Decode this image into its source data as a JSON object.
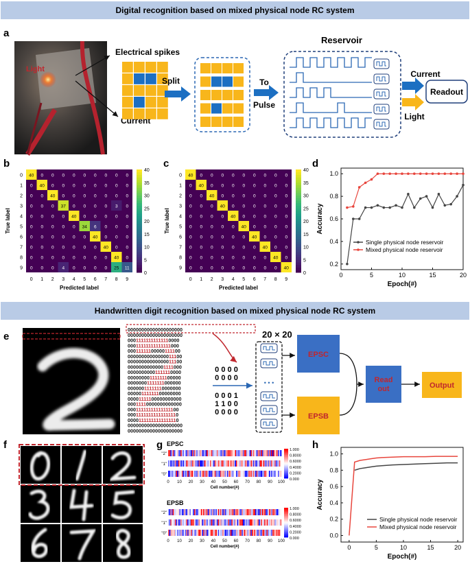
{
  "banners": {
    "top": "Digital recognition based on mixed physical node RC system",
    "middle": "Handwritten digit recognition based on mixed physical node RC system"
  },
  "panel_labels": {
    "a": "a",
    "b": "b",
    "c": "c",
    "d": "d",
    "e": "e",
    "f": "f",
    "g": "g",
    "h": "h"
  },
  "panel_a": {
    "photo_label": "Light",
    "electrical_spikes": "Electrical spikes",
    "current_label": "Current",
    "split": "Split",
    "to_pulse": "To\nPulse",
    "reservoir": "Reservoir",
    "out_current": "Current",
    "out_light": "Light",
    "readout": "Readout",
    "grid_pattern": [
      [
        0,
        0,
        0,
        0
      ],
      [
        0,
        1,
        1,
        0
      ],
      [
        0,
        0,
        0,
        0
      ],
      [
        0,
        1,
        0,
        0
      ],
      [
        0,
        0,
        0,
        0
      ]
    ],
    "colors": {
      "yellow": "#f8b61b",
      "blue": "#1c6fc2",
      "navy": "#1f3e7a",
      "dash": "#2a67b3"
    }
  },
  "confusion_axes": {
    "xlabel": "Predicted label",
    "ylabel": "True label",
    "ticks": [
      "0",
      "1",
      "2",
      "3",
      "4",
      "5",
      "6",
      "7",
      "8",
      "9"
    ],
    "colorbar_ticks": [
      0,
      5,
      10,
      15,
      20,
      25,
      30,
      35,
      40
    ]
  },
  "chart_data": [
    {
      "id": "b",
      "type": "heatmap",
      "xlabel": "Predicted label",
      "ylabel": "True label",
      "categories": [
        "0",
        "1",
        "2",
        "3",
        "4",
        "5",
        "6",
        "7",
        "8",
        "9"
      ],
      "matrix": [
        [
          40,
          0,
          0,
          0,
          0,
          0,
          0,
          0,
          0,
          0
        ],
        [
          0,
          40,
          0,
          0,
          0,
          0,
          0,
          0,
          0,
          0
        ],
        [
          0,
          0,
          40,
          0,
          0,
          0,
          0,
          0,
          0,
          0
        ],
        [
          0,
          0,
          0,
          37,
          0,
          0,
          0,
          0,
          3,
          0
        ],
        [
          0,
          0,
          0,
          0,
          40,
          0,
          0,
          0,
          0,
          0
        ],
        [
          0,
          0,
          0,
          0,
          0,
          34,
          6,
          0,
          0,
          0
        ],
        [
          0,
          0,
          0,
          0,
          0,
          0,
          40,
          0,
          0,
          0
        ],
        [
          0,
          0,
          0,
          0,
          0,
          0,
          0,
          40,
          0,
          0
        ],
        [
          0,
          0,
          0,
          0,
          0,
          0,
          0,
          0,
          40,
          0
        ],
        [
          0,
          0,
          0,
          4,
          0,
          0,
          0,
          0,
          25,
          11
        ]
      ],
      "zlim": [
        0,
        40
      ]
    },
    {
      "id": "c",
      "type": "heatmap",
      "xlabel": "Predicted label",
      "ylabel": "True label",
      "categories": [
        "0",
        "1",
        "2",
        "3",
        "4",
        "5",
        "6",
        "7",
        "8",
        "9"
      ],
      "matrix": [
        [
          40,
          0,
          0,
          0,
          0,
          0,
          0,
          0,
          0,
          0
        ],
        [
          0,
          40,
          0,
          0,
          0,
          0,
          0,
          0,
          0,
          0
        ],
        [
          0,
          0,
          40,
          0,
          0,
          0,
          0,
          0,
          0,
          0
        ],
        [
          0,
          0,
          0,
          40,
          0,
          0,
          0,
          0,
          0,
          0
        ],
        [
          0,
          0,
          0,
          0,
          40,
          0,
          0,
          0,
          0,
          0
        ],
        [
          0,
          0,
          0,
          0,
          0,
          40,
          0,
          0,
          0,
          0
        ],
        [
          0,
          0,
          0,
          0,
          0,
          0,
          40,
          0,
          0,
          0
        ],
        [
          0,
          0,
          0,
          0,
          0,
          0,
          0,
          40,
          0,
          0
        ],
        [
          0,
          0,
          0,
          0,
          0,
          0,
          0,
          0,
          40,
          0
        ],
        [
          0,
          0,
          0,
          0,
          0,
          0,
          0,
          0,
          0,
          40
        ]
      ],
      "zlim": [
        0,
        40
      ]
    },
    {
      "id": "d",
      "type": "line",
      "xlabel": "Epoch(#)",
      "ylabel": "Accuracy",
      "xlim": [
        0,
        20
      ],
      "ylim": [
        0.15,
        1.05
      ],
      "xticks": [
        0,
        5,
        10,
        15,
        20
      ],
      "yticks": [
        0.2,
        0.4,
        0.6,
        0.8,
        1.0
      ],
      "legend_position": "bottom-right",
      "series": [
        {
          "name": "Single physical node reservoir",
          "color": "#444444",
          "x": [
            1,
            2,
            3,
            4,
            5,
            6,
            7,
            8,
            9,
            10,
            11,
            12,
            13,
            14,
            15,
            16,
            17,
            18,
            19,
            20
          ],
          "y": [
            0.2,
            0.6,
            0.6,
            0.7,
            0.7,
            0.72,
            0.7,
            0.7,
            0.72,
            0.7,
            0.82,
            0.7,
            0.78,
            0.8,
            0.7,
            0.82,
            0.72,
            0.73,
            0.8,
            0.9
          ]
        },
        {
          "name": "Mixed physical node reservoir",
          "color": "#e8453c",
          "x": [
            1,
            2,
            3,
            4,
            5,
            6,
            7,
            8,
            9,
            10,
            11,
            12,
            13,
            14,
            15,
            16,
            17,
            18,
            19,
            20
          ],
          "y": [
            0.7,
            0.71,
            0.88,
            0.92,
            0.95,
            1.0,
            1.0,
            1.0,
            1.0,
            1.0,
            1.0,
            1.0,
            1.0,
            1.0,
            1.0,
            1.0,
            1.0,
            1.0,
            1.0,
            1.0
          ]
        }
      ]
    },
    {
      "id": "g",
      "type": "heatmap",
      "titles": [
        "EPSC",
        "EPSB"
      ],
      "xlabel": "Cell number(#)",
      "row_labels": [
        "\"2\"",
        "\"1\"",
        "\"0\""
      ],
      "xticks": [
        0,
        10,
        20,
        30,
        40,
        50,
        60,
        70,
        80,
        90,
        100
      ],
      "colorbar_ticks": [
        "1.000",
        "0.8000",
        "0.6000",
        "0.4000",
        "0.2000",
        "0.000"
      ]
    },
    {
      "id": "h",
      "type": "line",
      "xlabel": "Epoch(#)",
      "ylabel": "Accuracy",
      "xlim": [
        -1.5,
        21
      ],
      "ylim": [
        -0.08,
        1.08
      ],
      "xticks": [
        0,
        5,
        10,
        15,
        20
      ],
      "yticks": [
        0.0,
        0.2,
        0.4,
        0.6,
        0.8,
        1.0
      ],
      "legend_position": "bottom-right",
      "series": [
        {
          "name": "Single physical node reservoir",
          "color": "#444444",
          "x": [
            1,
            1.5,
            2,
            3,
            4,
            5,
            6,
            8,
            10,
            12,
            14,
            16,
            18,
            20
          ],
          "y": [
            0.8,
            0.81,
            0.82,
            0.83,
            0.84,
            0.85,
            0.855,
            0.865,
            0.87,
            0.875,
            0.88,
            0.885,
            0.89,
            0.89
          ]
        },
        {
          "name": "Mixed physical node reservoir",
          "color": "#e8453c",
          "x": [
            0,
            1,
            1.5,
            2,
            3,
            4,
            5,
            6,
            8,
            10,
            12,
            14,
            16,
            18,
            20
          ],
          "y": [
            0.0,
            0.9,
            0.91,
            0.92,
            0.93,
            0.94,
            0.95,
            0.955,
            0.96,
            0.965,
            0.965,
            0.965,
            0.97,
            0.97,
            0.97
          ]
        }
      ]
    }
  ],
  "panel_e": {
    "size_label": "20 × 20",
    "matrix": [
      "00000000000000000000",
      "00000000000000000000",
      "00011111111111110000",
      "00011111111111111000",
      "00011111100000111100",
      "00000000000000011100",
      "00000000000000011100",
      "00000000000001111000",
      "00000000001111110000",
      "00000000111111100000",
      "00000001111111000000",
      "00000011111110000000",
      "00000111111100000000",
      "00001111100000000000",
      "00011110000000000000",
      "00011111111111111100",
      "00011111111111111110",
      "00001111111111111110",
      "00000000000000000000",
      "00000000000000000000"
    ],
    "chunks": [
      "0000",
      "0000",
      "0001",
      "1100",
      "0000"
    ],
    "epsc": "EPSC",
    "epsb": "EPSB",
    "readout": "Read\nout",
    "output": "Output",
    "dots": "• • •"
  },
  "panel_f": {
    "digits": [
      "0",
      "1",
      "2",
      "3",
      "4",
      "5",
      "6",
      "7",
      "8"
    ]
  }
}
